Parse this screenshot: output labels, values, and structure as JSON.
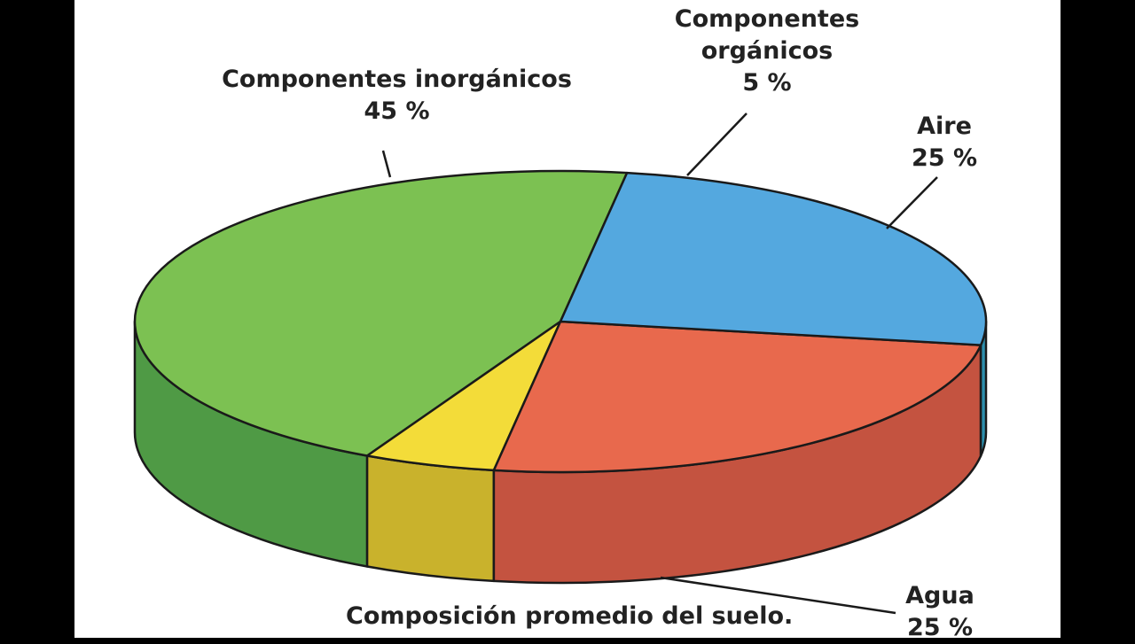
{
  "chart_data": {
    "type": "pie",
    "style": "3d",
    "title": "",
    "caption": "Composición promedio del suelo.",
    "slices": [
      {
        "name": "Componentes inorgánicos",
        "value": 45,
        "value_label": "45 %",
        "color": "#7cc152",
        "side_color": "#4f9a45"
      },
      {
        "name": "Componentes orgánicos",
        "value": 5,
        "value_label": "5 %",
        "color": "#f3dc39",
        "side_color": "#c9b22c"
      },
      {
        "name": "Aire",
        "value": 25,
        "value_label": "25 %",
        "color": "#e8694d",
        "side_color": "#c45340"
      },
      {
        "name": "Agua",
        "value": 25,
        "value_label": "25 %",
        "color": "#54a8df",
        "side_color": "#2c8fad"
      }
    ],
    "label_names": {
      "inorganic": "Componentes inorgánicos",
      "organic_line1": "Componentes",
      "organic_line2": "orgánicos",
      "air": "Aire",
      "water": "Agua"
    },
    "legend": "none"
  }
}
